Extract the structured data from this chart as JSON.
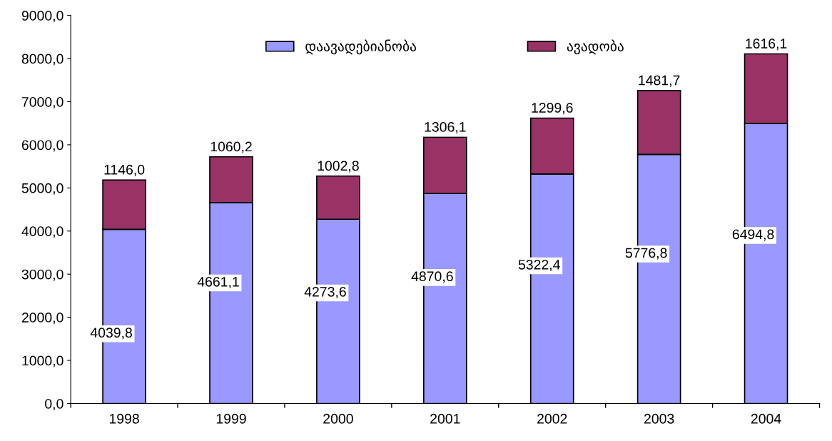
{
  "chart_data": {
    "type": "bar",
    "stacked": true,
    "categories": [
      "1998",
      "1999",
      "2000",
      "2001",
      "2002",
      "2003",
      "2004"
    ],
    "series": [
      {
        "name": "დაავადებიანობა",
        "color": "#9999ff",
        "values": [
          4039.8,
          4661.1,
          4273.6,
          4870.6,
          5322.4,
          5776.8,
          6494.8
        ],
        "value_labels": [
          "4039,8",
          "4661,1",
          "4273,6",
          "4870,6",
          "5322,4",
          "5776,8",
          "6494,8"
        ]
      },
      {
        "name": "ავადობა",
        "color": "#993366",
        "values": [
          1146.0,
          1060.2,
          1002.8,
          1306.1,
          1299.6,
          1481.7,
          1616.1
        ],
        "value_labels": [
          "1146,0",
          "1060,2",
          "1002,8",
          "1306,1",
          "1299,6",
          "1481,7",
          "1616,1"
        ]
      }
    ],
    "ylim": [
      0,
      9000
    ],
    "yticks": [
      {
        "value": 0,
        "label": "0,0"
      },
      {
        "value": 1000,
        "label": "1000,0"
      },
      {
        "value": 2000,
        "label": "2000,0"
      },
      {
        "value": 3000,
        "label": "3000,0"
      },
      {
        "value": 4000,
        "label": "4000,0"
      },
      {
        "value": 5000,
        "label": "5000,0"
      },
      {
        "value": 6000,
        "label": "6000,0"
      },
      {
        "value": 7000,
        "label": "7000,0"
      },
      {
        "value": 8000,
        "label": "8000,0"
      },
      {
        "value": 9000,
        "label": "9000,0"
      }
    ],
    "legend": "top",
    "grid": false
  }
}
